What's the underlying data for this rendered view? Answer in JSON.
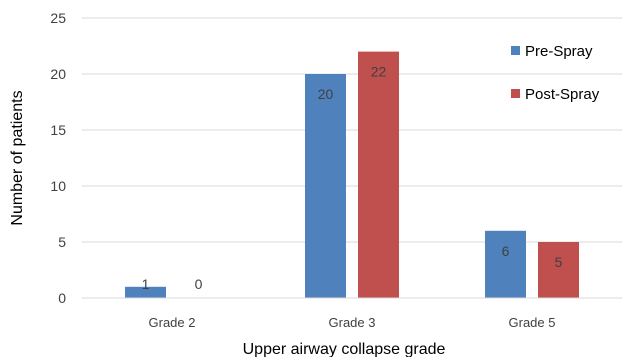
{
  "chart_data": {
    "type": "bar",
    "categories": [
      "Grade 2",
      "Grade 3",
      "Grade 5"
    ],
    "series": [
      {
        "name": "Pre-Spray",
        "values": [
          1,
          20,
          6
        ],
        "color": "#4F81BD"
      },
      {
        "name": "Post-Spray",
        "values": [
          0,
          22,
          5
        ],
        "color": "#C0504D"
      }
    ],
    "xlabel": "Upper airway collapse grade",
    "ylabel": "Number of patients",
    "ylim": [
      0,
      25
    ],
    "yticks": [
      0,
      5,
      10,
      15,
      20,
      25
    ],
    "grid": true,
    "legend_position": "top-right",
    "data_labels": true
  }
}
